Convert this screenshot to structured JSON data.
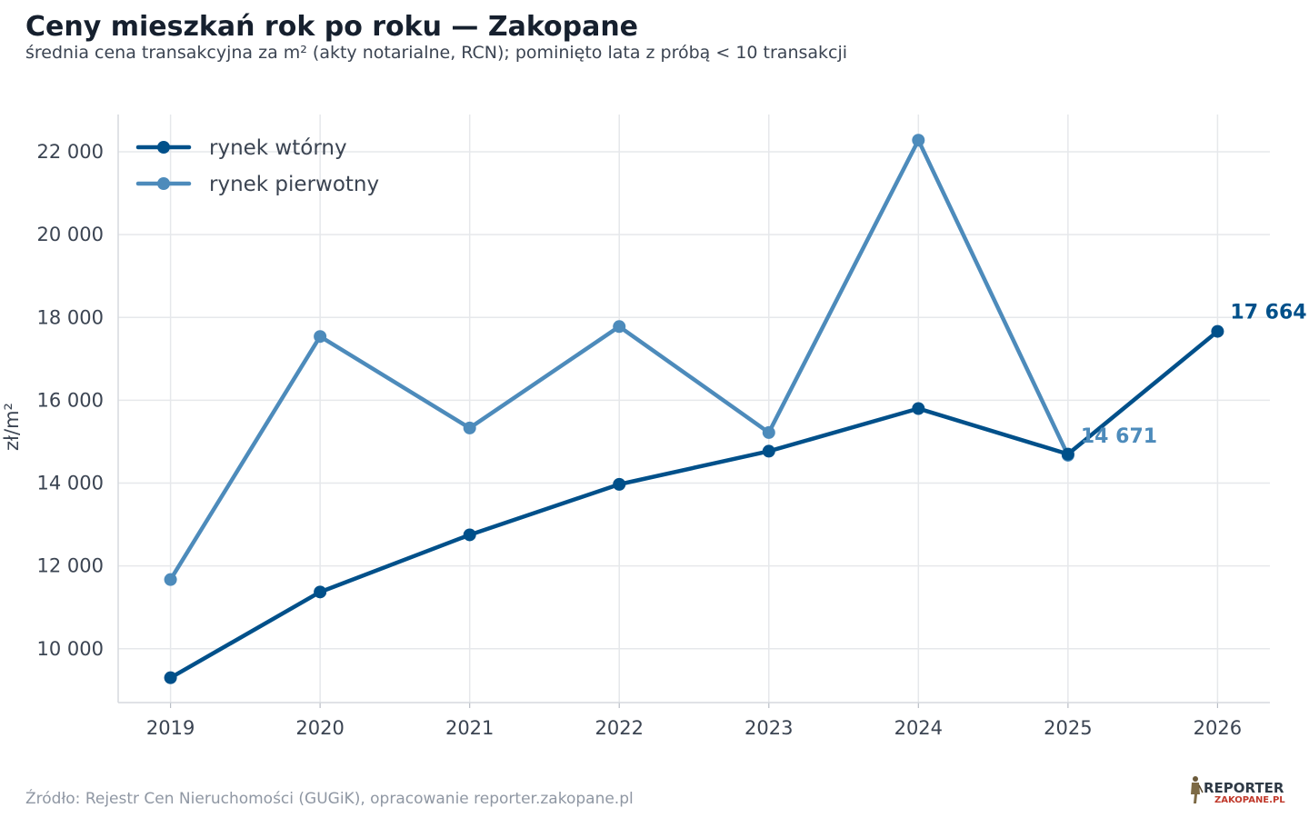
{
  "header": {
    "title": "Ceny mieszkań rok po roku — Zakopane",
    "subtitle": "średnia cena transakcyjna za m² (akty notarialne, RCN); pominięto lata z próbą < 10 transakcji"
  },
  "footer": {
    "source": "Źródło: Rejestr Cen Nieruchomości (GUGiK), opracowanie reporter.zakopane.pl",
    "logo_text_top": "REPORTER",
    "logo_text_bottom": "ZAKOPANE.PL"
  },
  "colors": {
    "secondary": "#00508a",
    "primary": "#4d8bbb",
    "grid": "#e6e8eb",
    "axis_text": "#3b4452"
  },
  "chart_data": {
    "type": "line",
    "title": "Ceny mieszkań rok po roku — Zakopane",
    "subtitle": "średnia cena transakcyjna za m² (akty notarialne, RCN); pominięto lata z próbą < 10 transakcji",
    "xlabel": "",
    "ylabel": "zł/m²",
    "x": [
      2019,
      2020,
      2021,
      2022,
      2023,
      2024,
      2025,
      2026
    ],
    "xlim": [
      2018.65,
      2026.35
    ],
    "ylim": [
      8700,
      22900
    ],
    "yticks": [
      10000,
      12000,
      14000,
      16000,
      18000,
      20000,
      22000
    ],
    "ytick_labels": [
      "10 000",
      "12 000",
      "14 000",
      "16 000",
      "18 000",
      "20 000",
      "22 000"
    ],
    "grid": true,
    "legend_position": "top-left",
    "series": [
      {
        "name": "rynek wtórny",
        "color": "#00508a",
        "values": [
          9300,
          11370,
          12750,
          13970,
          14770,
          15800,
          14700,
          17664
        ]
      },
      {
        "name": "rynek pierwotny",
        "color": "#4d8bbb",
        "values": [
          11670,
          17540,
          15330,
          17780,
          15220,
          22280,
          14671,
          null
        ]
      }
    ],
    "annotations": [
      {
        "series": 0,
        "x": 2026,
        "text": "17 664"
      },
      {
        "series": 1,
        "x": 2025,
        "text": "14 671"
      }
    ]
  }
}
